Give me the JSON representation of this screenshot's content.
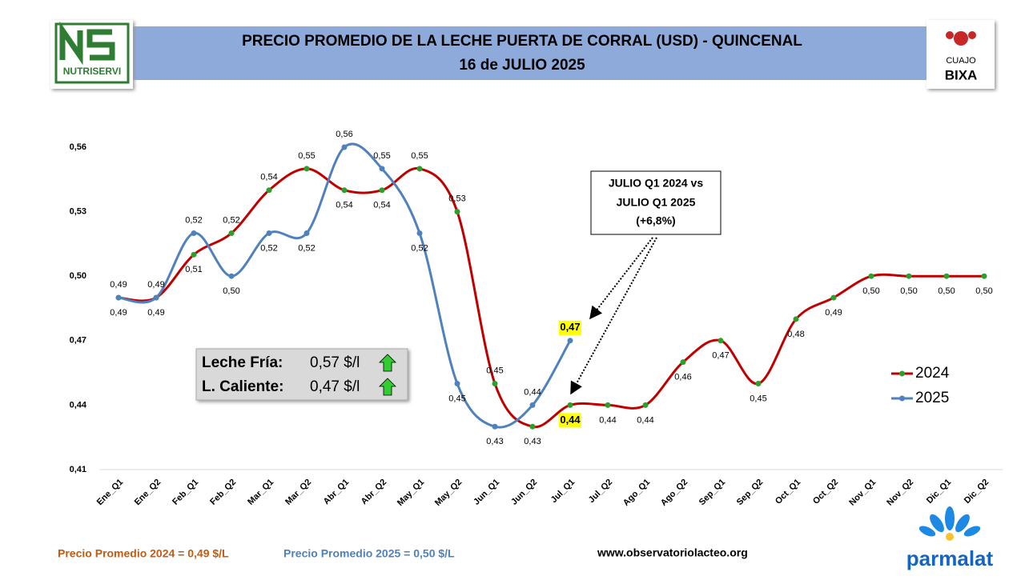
{
  "chart_data": {
    "type": "line",
    "title_lines": [
      "PRECIO PROMEDIO DE LA LECHE PUERTA DE CORRAL (USD) - QUINCENAL",
      "16 de JULIO 2025"
    ],
    "categories": [
      "Ene_Q1",
      "Ene_Q2",
      "Feb_Q1",
      "Feb_Q2",
      "Mar_Q1",
      "Mar_Q2",
      "Abr_Q1",
      "Abr_Q2",
      "May_Q1",
      "May_Q2",
      "Jun_Q1",
      "Jun_Q2",
      "Jul_Q1",
      "Jul_Q2",
      "Ago_Q1",
      "Ago_Q2",
      "Sep_Q1",
      "Sep_Q2",
      "Oct_Q1",
      "Oct_Q2",
      "Nov_Q1",
      "Nov_Q2",
      "Dic_Q1",
      "Dic_Q2"
    ],
    "series": [
      {
        "name": "2024",
        "color": "#c00000",
        "marker_color": "#2ca02c",
        "values": [
          0.49,
          0.49,
          0.51,
          0.52,
          0.54,
          0.55,
          0.54,
          0.54,
          0.55,
          0.53,
          0.45,
          0.43,
          0.44,
          0.44,
          0.44,
          0.46,
          0.47,
          0.45,
          0.48,
          0.49,
          0.5,
          0.5,
          0.5,
          0.5
        ],
        "value_labels": [
          "0,49",
          "0,49",
          "0,51",
          "0,52",
          "0,54",
          "0,55",
          "0,54",
          "0,54",
          "0,55",
          "0,53",
          "0,45",
          "0,43",
          "0,44",
          "0,44",
          "0,44",
          "0,46",
          "0,47",
          "0,45",
          "0,48",
          "0,49",
          "0,50",
          "0,50",
          "0,50",
          "0,50"
        ]
      },
      {
        "name": "2025",
        "color": "#4f81bd",
        "marker_color": "#4f81bd",
        "values": [
          0.49,
          0.49,
          0.52,
          0.5,
          0.52,
          0.52,
          0.56,
          0.55,
          0.52,
          0.45,
          0.43,
          0.44,
          0.47,
          null,
          null,
          null,
          null,
          null,
          null,
          null,
          null,
          null,
          null,
          null
        ],
        "value_labels": [
          "0,49",
          "0,49",
          "0,52",
          "0,50",
          "0,52",
          "0,52",
          "0,56",
          "0,55",
          "0,52",
          "0,45",
          "0,43",
          "0,44",
          "0,47",
          null,
          null,
          null,
          null,
          null,
          null,
          null,
          null,
          null,
          null,
          null
        ]
      }
    ],
    "highlight_category": "Jul_Q1",
    "ylim": [
      0.41,
      0.56
    ],
    "yticks": [
      {
        "value": 0.41,
        "label": "0,41"
      },
      {
        "value": 0.44,
        "label": "0,44"
      },
      {
        "value": 0.47,
        "label": "0,47"
      },
      {
        "value": 0.5,
        "label": "0,50"
      },
      {
        "value": 0.53,
        "label": "0,53"
      },
      {
        "value": 0.56,
        "label": "0,56"
      }
    ],
    "annotation_lines": [
      "JULIO Q1 2024 vs",
      "JULIO Q1 2025",
      "(+6,8%)"
    ],
    "info": [
      {
        "label": "Leche Fría:",
        "value": "0,57 $/l"
      },
      {
        "label": "L. Caliente:",
        "value": "0,47 $/l"
      }
    ],
    "footer": {
      "avg_2024": "Precio Promedio 2024 = 0,49 $/L",
      "avg_2025": "Precio Promedio 2025 = 0,50 $/L",
      "website": "www.observatoriolacteo.org"
    },
    "logos": {
      "left": "NUTRISERVI",
      "right_top": "CUAJO",
      "right_bottom": "BIXA",
      "bottom": "parmalat"
    }
  }
}
